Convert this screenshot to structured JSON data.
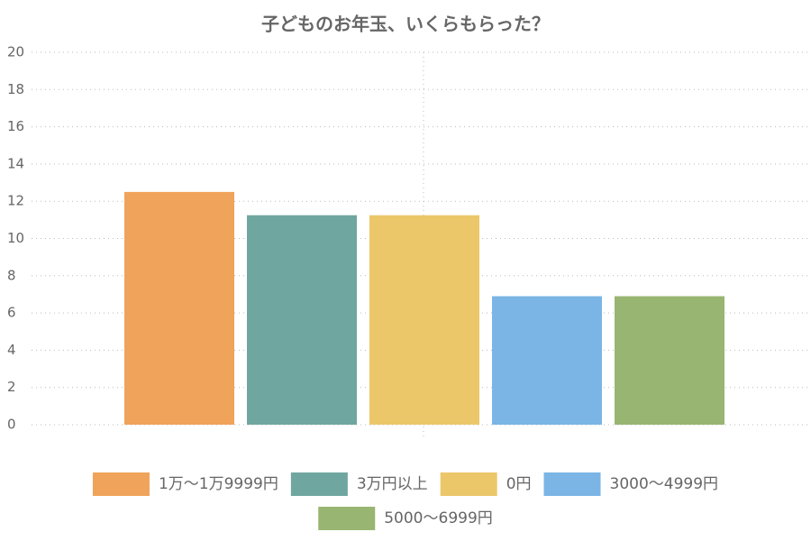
{
  "chart_data": {
    "type": "bar",
    "title": "子どものお年玉、いくらもらった？",
    "categories": [
      null
    ],
    "series": [
      {
        "name": "1万〜1万9999円",
        "color": "#f0a35a",
        "values": [
          12.5
        ]
      },
      {
        "name": "3万円以上",
        "color": "#70a6a0",
        "values": [
          11.25
        ]
      },
      {
        "name": "0円",
        "color": "#ecc76a",
        "values": [
          11.25
        ]
      },
      {
        "name": "3000〜4999円",
        "color": "#7ab5e5",
        "values": [
          6.9
        ]
      },
      {
        "name": "5000〜6999円",
        "color": "#98b571",
        "values": [
          6.9
        ]
      }
    ],
    "ylim": [
      0,
      20
    ],
    "yticks": [
      0,
      2,
      4,
      6,
      8,
      10,
      12,
      14,
      16,
      18,
      20
    ],
    "grid": true,
    "legend": "bottom"
  }
}
